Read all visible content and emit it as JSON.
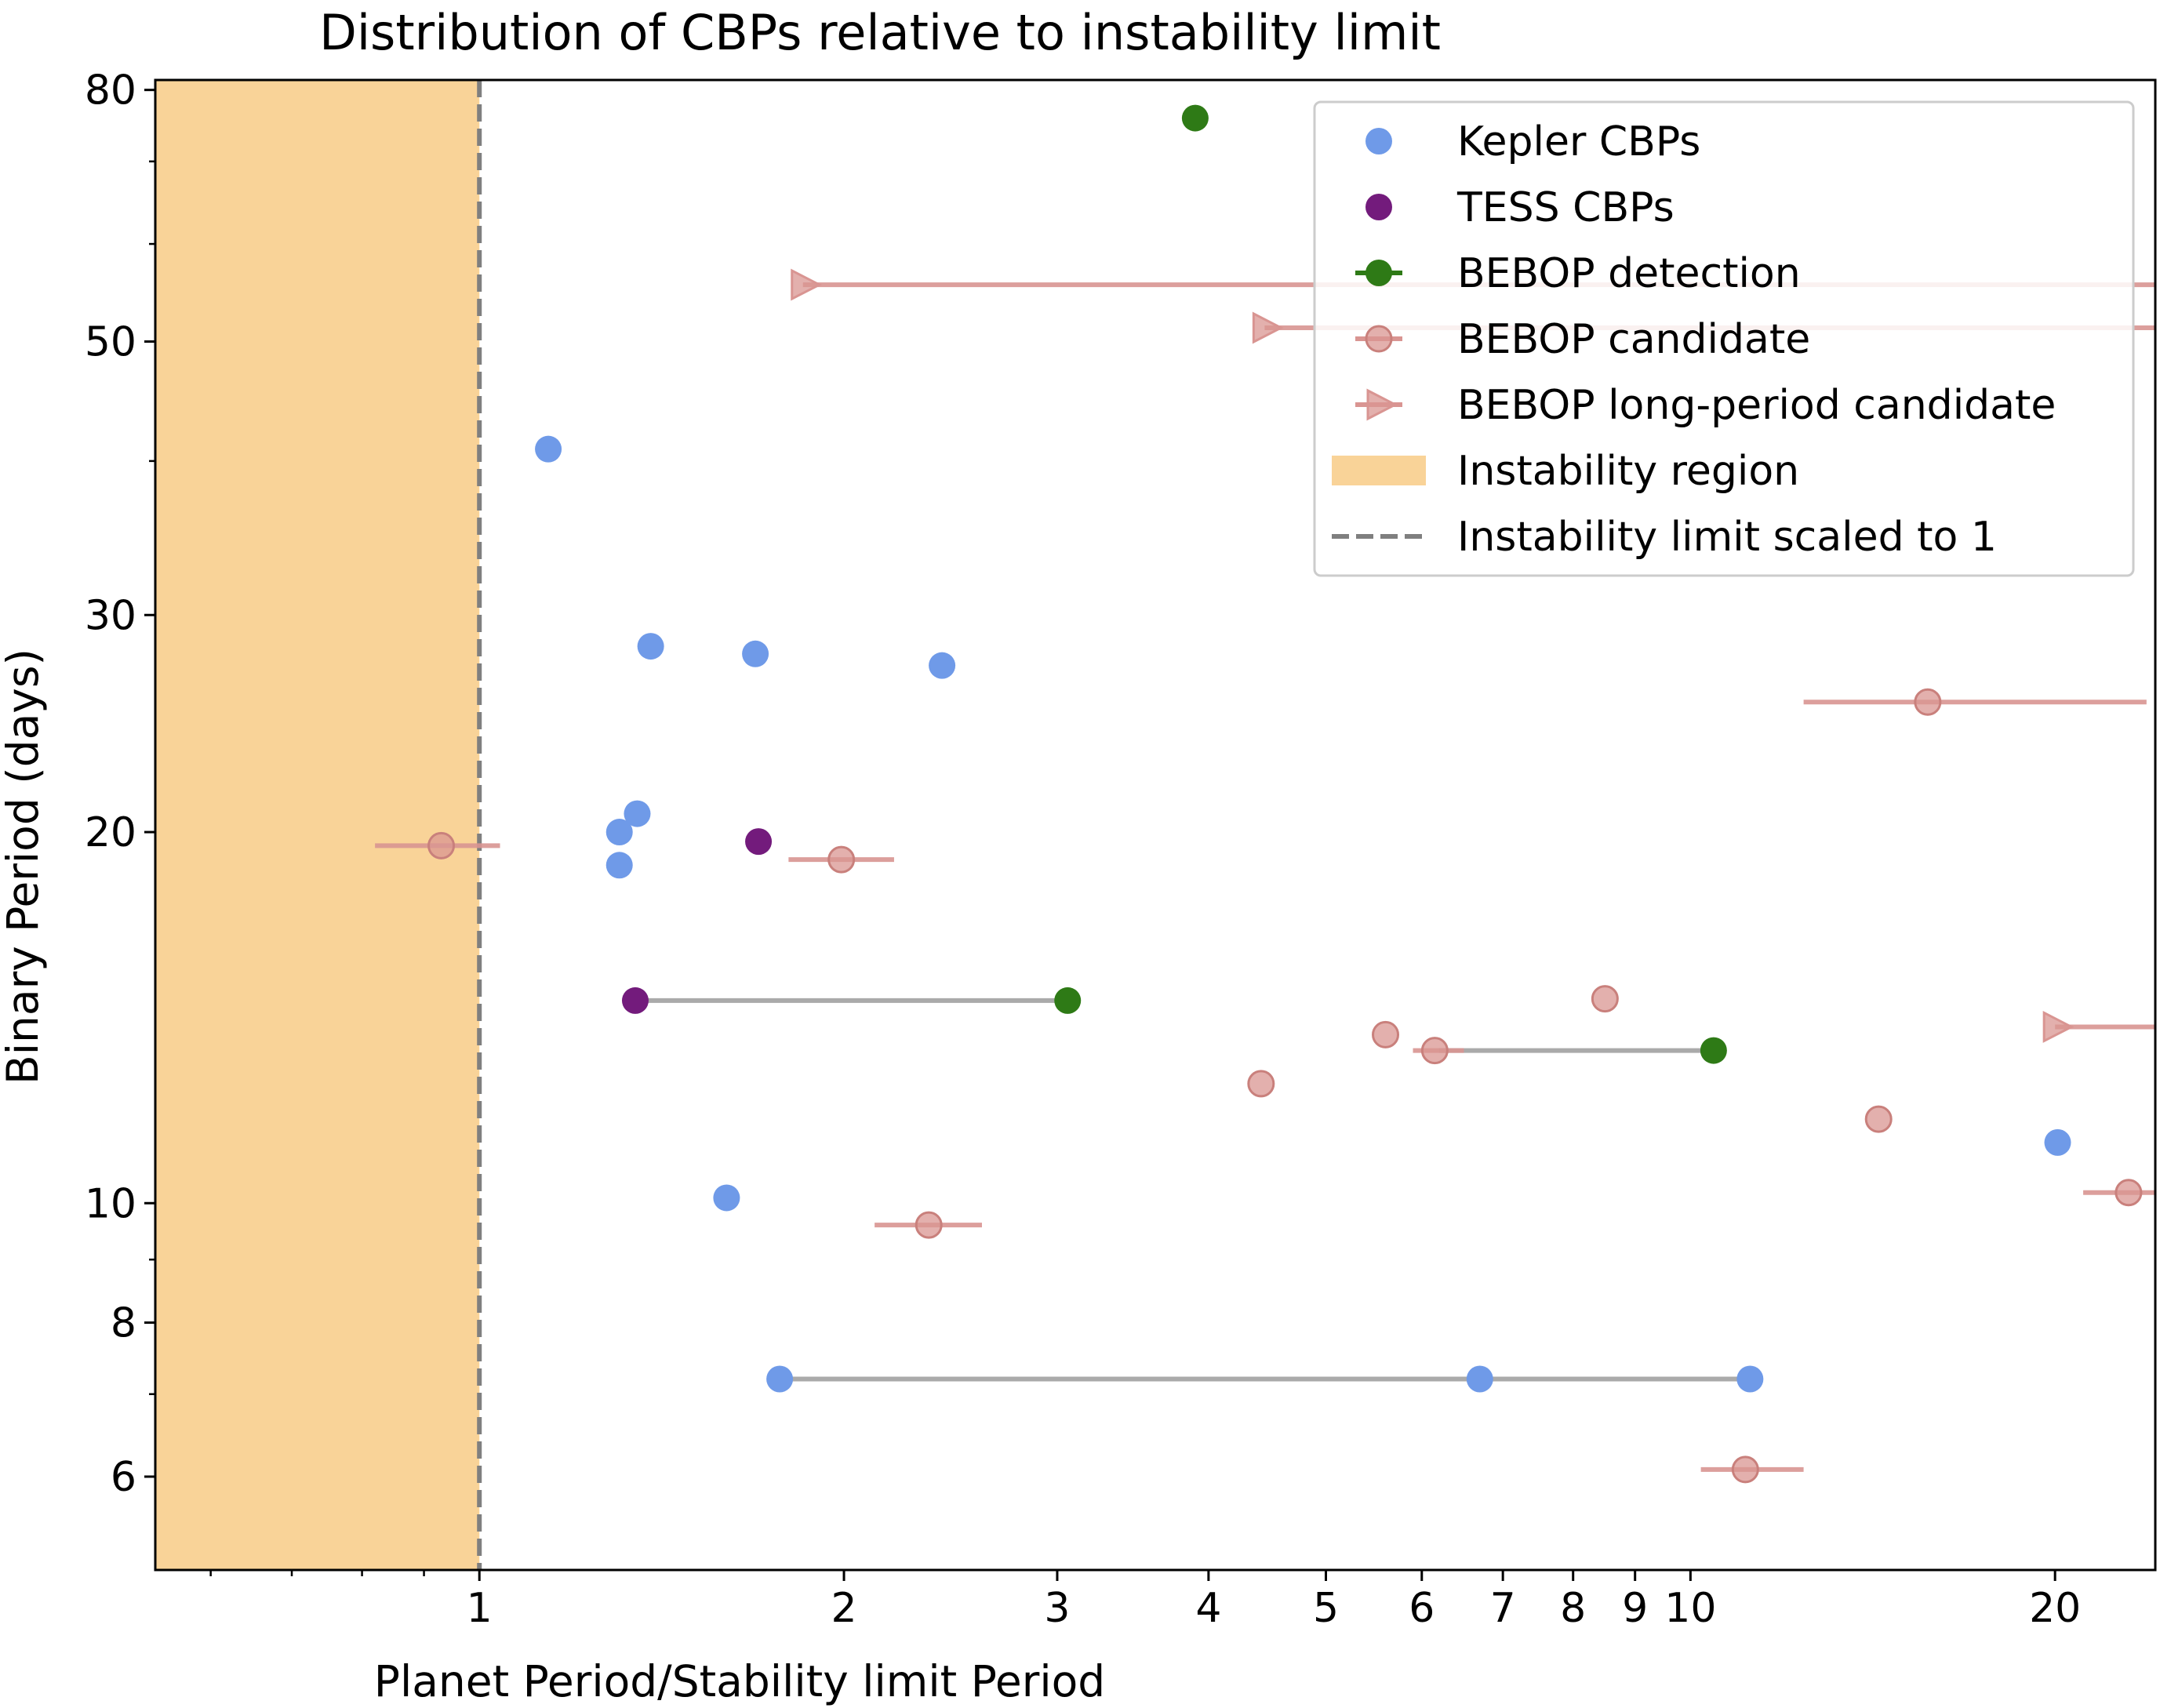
{
  "chart_data": {
    "type": "scatter",
    "title": "Distribution of CBPs relative to instability limit",
    "xlabel": "Planet Period/Stability limit Period",
    "ylabel": "Binary Period (days)",
    "xscale": "log",
    "yscale": "log",
    "xlim": [
      0.54,
      24.2
    ],
    "ylim": [
      5.04,
      81.5
    ],
    "xticks_major": [
      {
        "value": 1,
        "label": "1"
      },
      {
        "value": 2,
        "label": "2"
      },
      {
        "value": 3,
        "label": "3"
      },
      {
        "value": 4,
        "label": "4"
      },
      {
        "value": 5,
        "label": "5"
      },
      {
        "value": 6,
        "label": "6"
      },
      {
        "value": 7,
        "label": "7"
      },
      {
        "value": 8,
        "label": "8"
      },
      {
        "value": 9,
        "label": "9"
      },
      {
        "value": 10,
        "label": "10"
      },
      {
        "value": 20,
        "label": "20"
      }
    ],
    "xticks_minor": [
      0.6,
      0.7,
      0.8,
      0.9
    ],
    "yticks_major": [
      {
        "value": 6,
        "label": "6"
      },
      {
        "value": 8,
        "label": "8"
      },
      {
        "value": 10,
        "label": "10"
      },
      {
        "value": 20,
        "label": "20"
      },
      {
        "value": 30,
        "label": "30"
      },
      {
        "value": 50,
        "label": "50"
      },
      {
        "value": 80,
        "label": "80"
      }
    ],
    "yticks_minor": [
      7,
      9,
      40,
      60,
      70
    ],
    "instability_region": {
      "x_from": 0.54,
      "x_to": 1.0,
      "color": "#f9d398",
      "label": "Instability region"
    },
    "instability_limit": {
      "x": 1.0,
      "color": "#7f7f7f",
      "label": "Instability limit scaled to 1"
    },
    "connectors": [
      {
        "x": [
          1.345,
          3.06
        ],
        "y": 14.6,
        "color": "#aaaaaa"
      },
      {
        "x": [
          6.2,
          10.45
        ],
        "y": 13.3,
        "color": "#aaaaaa"
      },
      {
        "x": [
          1.77,
          6.7,
          11.2
        ],
        "y": 7.2,
        "color": "#aaaaaa"
      }
    ],
    "series": [
      {
        "name": "Kepler CBPs",
        "marker": "circle",
        "color": "#6f9ae8",
        "points": [
          {
            "x": 1.14,
            "y": 40.9
          },
          {
            "x": 1.385,
            "y": 28.3
          },
          {
            "x": 1.69,
            "y": 27.9
          },
          {
            "x": 2.41,
            "y": 27.3
          },
          {
            "x": 1.305,
            "y": 20.0
          },
          {
            "x": 1.35,
            "y": 20.7
          },
          {
            "x": 1.305,
            "y": 18.8
          },
          {
            "x": 1.6,
            "y": 10.1
          },
          {
            "x": 1.77,
            "y": 7.2
          },
          {
            "x": 6.7,
            "y": 7.2
          },
          {
            "x": 11.2,
            "y": 7.2
          },
          {
            "x": 20.1,
            "y": 11.2
          }
        ]
      },
      {
        "name": "TESS CBPs",
        "marker": "circle",
        "color": "#731b7c",
        "points": [
          {
            "x": 1.7,
            "y": 19.65
          },
          {
            "x": 1.345,
            "y": 14.6
          }
        ]
      },
      {
        "name": "BEBOP detection",
        "marker": "circle",
        "color": "#2e7a16",
        "points": [
          {
            "x": 3.9,
            "y": 75.9
          },
          {
            "x": 3.06,
            "y": 14.6
          },
          {
            "x": 10.45,
            "y": 13.3
          }
        ]
      },
      {
        "name": "BEBOP candidate",
        "marker": "circle",
        "color": "#d99592",
        "points": [
          {
            "x": 0.93,
            "y": 19.5,
            "xerr": [
              0.82,
              1.04
            ]
          },
          {
            "x": 1.99,
            "y": 19.0,
            "xerr": [
              1.8,
              2.2
            ]
          },
          {
            "x": 2.35,
            "y": 9.6,
            "xerr": [
              2.12,
              2.6
            ]
          },
          {
            "x": 4.42,
            "y": 12.5
          },
          {
            "x": 5.6,
            "y": 13.7
          },
          {
            "x": 6.15,
            "y": 13.3,
            "xerr": [
              5.9,
              6.5
            ]
          },
          {
            "x": 8.5,
            "y": 14.65
          },
          {
            "x": 11.1,
            "y": 6.08,
            "xerr": [
              10.2,
              12.4
            ]
          },
          {
            "x": 14.3,
            "y": 11.7
          },
          {
            "x": 15.7,
            "y": 25.5,
            "xerr": [
              12.4,
              23.8
            ]
          },
          {
            "x": 23.0,
            "y": 10.2,
            "xerr": [
              21.1,
              24.2
            ]
          }
        ]
      },
      {
        "name": "BEBOP long-period candidate",
        "marker": "triangle-right",
        "color": "#d99592",
        "points": [
          {
            "x": 1.85,
            "y": 55.6,
            "xerr": [
              1.85,
              24.2
            ]
          },
          {
            "x": 4.45,
            "y": 51.3,
            "xerr": [
              4.45,
              24.2
            ]
          },
          {
            "x": 20.0,
            "y": 13.9,
            "xerr": [
              20.0,
              24.2
            ]
          }
        ]
      }
    ],
    "legend": {
      "position": "upper-right",
      "entries": [
        {
          "label": "Kepler CBPs",
          "style": "kepler"
        },
        {
          "label": "TESS CBPs",
          "style": "tess"
        },
        {
          "label": "BEBOP detection",
          "style": "detection"
        },
        {
          "label": "BEBOP candidate",
          "style": "candidate"
        },
        {
          "label": "BEBOP long-period candidate",
          "style": "longperiod"
        },
        {
          "label": "Instability region",
          "style": "region"
        },
        {
          "label": "Instability limit scaled to 1",
          "style": "limit"
        }
      ]
    }
  }
}
